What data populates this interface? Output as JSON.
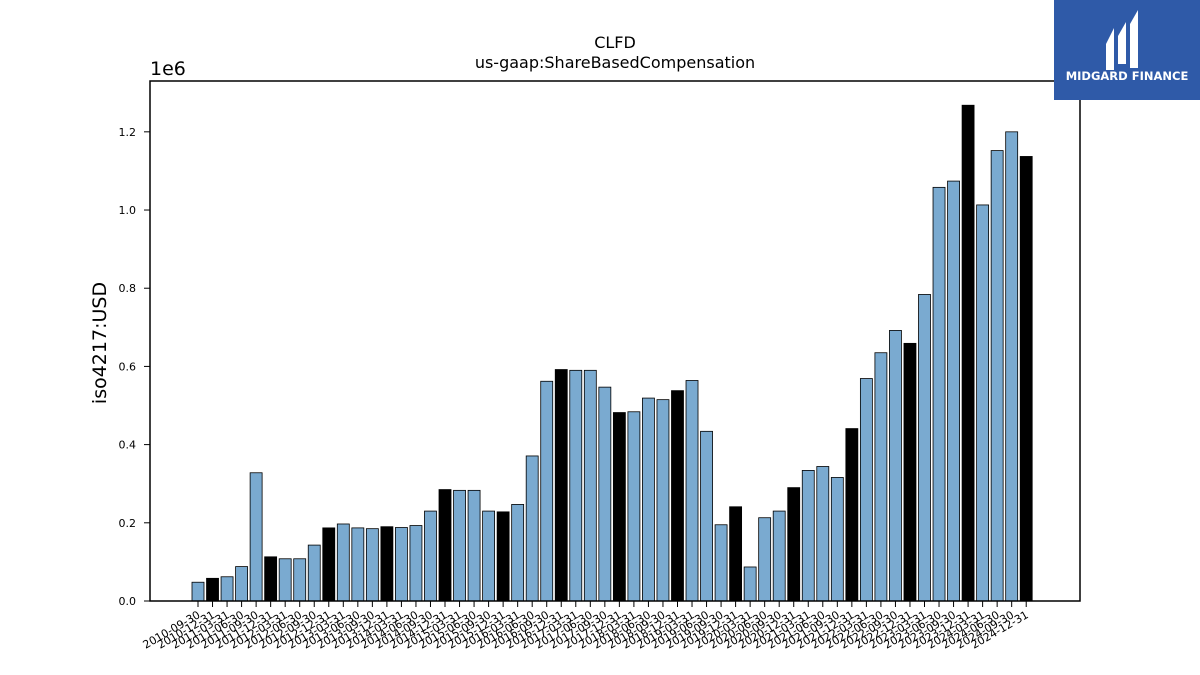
{
  "logo": {
    "text": "MIDGARD FINANCE",
    "bg_color": "#2f5aa8"
  },
  "chart_data": {
    "type": "bar",
    "title": "CLFD",
    "subtitle": "us-gaap:ShareBasedCompensation",
    "ylabel": "iso4217:USD",
    "xlabel": "",
    "y_scale_label": "1e6",
    "ylim": [
      0,
      1.33
    ],
    "yticks": [
      0.0,
      0.2,
      0.4,
      0.6,
      0.8,
      1.0,
      1.2
    ],
    "ytick_labels": [
      "0.0",
      "0.2",
      "0.4",
      "0.6",
      "0.8",
      "1.0",
      "1.2"
    ],
    "colors": {
      "quarter": "#7aaad0",
      "year_end": "#000000",
      "edge": "#000000"
    },
    "categories": [
      "2010-09-30",
      "2010-12-31",
      "2011-03-31",
      "2011-06-30",
      "2011-09-30",
      "2011-12-31",
      "2012-03-31",
      "2012-06-30",
      "2012-09-30",
      "2012-12-31",
      "2013-03-31",
      "2013-06-30",
      "2013-09-30",
      "2013-12-31",
      "2014-03-31",
      "2014-06-30",
      "2014-09-30",
      "2014-12-31",
      "2015-03-31",
      "2015-06-30",
      "2015-09-30",
      "2015-12-31",
      "2016-03-31",
      "2016-06-30",
      "2016-09-30",
      "2016-12-31",
      "2017-03-31",
      "2017-06-30",
      "2017-09-30",
      "2017-12-31",
      "2018-03-31",
      "2018-06-30",
      "2018-09-30",
      "2018-12-31",
      "2019-03-31",
      "2019-06-30",
      "2019-09-30",
      "2019-12-31",
      "2020-03-31",
      "2020-06-30",
      "2020-09-30",
      "2020-12-31",
      "2021-03-31",
      "2021-06-30",
      "2021-09-30",
      "2021-12-31",
      "2022-03-31",
      "2022-06-30",
      "2022-09-30",
      "2022-12-31",
      "2023-03-31",
      "2023-06-30",
      "2023-09-30",
      "2023-12-31",
      "2024-03-31",
      "2024-06-30",
      "2024-09-30",
      "2024-12-31"
    ],
    "values": [
      0.048,
      0.058,
      0.062,
      0.088,
      0.328,
      0.113,
      0.108,
      0.108,
      0.143,
      0.187,
      0.197,
      0.187,
      0.185,
      0.19,
      0.188,
      0.193,
      0.23,
      0.285,
      0.283,
      0.283,
      0.23,
      0.228,
      0.247,
      0.371,
      0.562,
      0.592,
      0.59,
      0.59,
      0.547,
      0.482,
      0.484,
      0.519,
      0.515,
      0.538,
      0.564,
      0.434,
      0.195,
      0.241,
      0.087,
      0.213,
      0.23,
      0.29,
      0.334,
      0.344,
      0.316,
      0.441,
      0.569,
      0.635,
      0.692,
      0.659,
      0.784,
      1.058,
      1.074,
      1.268,
      1.013,
      1.152,
      1.2,
      1.137
    ],
    "highlight": [
      false,
      true,
      false,
      false,
      false,
      true,
      false,
      false,
      false,
      true,
      false,
      false,
      false,
      true,
      false,
      false,
      false,
      true,
      false,
      false,
      false,
      true,
      false,
      false,
      false,
      true,
      false,
      false,
      false,
      true,
      false,
      false,
      false,
      true,
      false,
      false,
      false,
      true,
      false,
      false,
      false,
      true,
      false,
      false,
      false,
      true,
      false,
      false,
      false,
      true,
      false,
      false,
      false,
      true,
      false,
      false,
      false,
      true
    ]
  }
}
